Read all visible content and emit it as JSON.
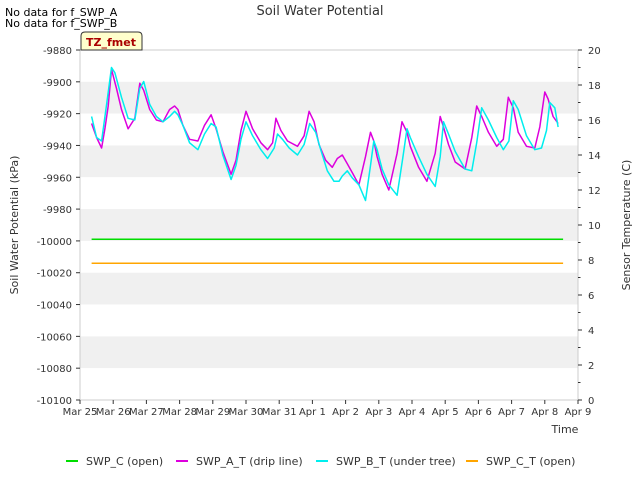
{
  "chart_data": {
    "type": "line",
    "title": "Soil Water Potential",
    "xlabel": "Time",
    "ylabel": "Soil Water Potential (kPa)",
    "y2label": "Sensor Temperature (C)",
    "ylim": [
      -10100,
      -9880
    ],
    "y2lim": [
      0,
      20
    ],
    "xlim": [
      0,
      15
    ],
    "yticks": [
      -9880,
      -9900,
      -9920,
      -9940,
      -9960,
      -9980,
      -10000,
      -10020,
      -10040,
      -10060,
      -10080,
      -10100
    ],
    "y2ticks": [
      0,
      2,
      4,
      6,
      8,
      10,
      12,
      14,
      16,
      18,
      20
    ],
    "xtick_labels": [
      "Mar 25",
      "Mar 26",
      "Mar 27",
      "Mar 28",
      "Mar 29",
      "Mar 30",
      "Mar 31",
      "Apr 1",
      "Apr 2",
      "Apr 3",
      "Apr 4",
      "Apr 5",
      "Apr 6",
      "Apr 7",
      "Apr 8",
      "Apr 9"
    ],
    "no_data_notes": [
      "No data for f_SWP_A",
      "No data for f_SWP_B"
    ],
    "box_label": "TZ_fmet",
    "series": [
      {
        "name": "SWP_C (open)",
        "color": "#00dd00",
        "axis": "left",
        "x": [
          0.35,
          14.55
        ],
        "values": [
          -9999,
          -9999
        ]
      },
      {
        "name": "SWP_A_T (drip line)",
        "color": "#dd00dd",
        "axis": "right",
        "x": [
          0.35,
          0.5,
          0.65,
          0.75,
          0.85,
          0.95,
          1.1,
          1.25,
          1.45,
          1.65,
          1.8,
          1.92,
          2.1,
          2.3,
          2.5,
          2.7,
          2.85,
          2.95,
          3.1,
          3.3,
          3.55,
          3.75,
          3.95,
          4.1,
          4.3,
          4.55,
          4.7,
          4.85,
          5.0,
          5.2,
          5.45,
          5.65,
          5.8,
          5.9,
          6.05,
          6.25,
          6.55,
          6.75,
          6.9,
          7.05,
          7.2,
          7.4,
          7.6,
          7.75,
          7.9,
          8.05,
          8.2,
          8.4,
          8.6,
          8.75,
          8.85,
          8.95,
          9.1,
          9.3,
          9.55,
          9.7,
          9.85,
          9.95,
          10.2,
          10.45,
          10.7,
          10.85,
          10.95,
          11.1,
          11.3,
          11.6,
          11.8,
          11.95,
          12.1,
          12.3,
          12.55,
          12.75,
          12.9,
          13.05,
          13.2,
          13.45,
          13.7,
          13.85,
          14.0,
          14.1,
          14.25,
          14.4
        ],
        "values": [
          15.8,
          15.0,
          14.4,
          15.5,
          16.8,
          18.9,
          17.8,
          16.6,
          15.5,
          16.1,
          18.1,
          17.7,
          16.6,
          16.0,
          15.9,
          16.6,
          16.8,
          16.6,
          15.7,
          14.9,
          14.8,
          15.7,
          16.3,
          15.5,
          14.2,
          12.9,
          13.7,
          15.4,
          16.5,
          15.5,
          14.7,
          14.3,
          14.7,
          16.1,
          15.4,
          14.8,
          14.5,
          15.1,
          16.5,
          15.9,
          14.6,
          13.7,
          13.3,
          13.8,
          14.0,
          13.5,
          13.0,
          12.3,
          13.9,
          15.3,
          14.8,
          13.9,
          12.9,
          12.0,
          14.1,
          15.9,
          15.3,
          14.5,
          13.3,
          12.5,
          14.1,
          16.2,
          15.6,
          14.6,
          13.6,
          13.2,
          15.0,
          16.8,
          16.2,
          15.3,
          14.5,
          14.9,
          17.3,
          16.7,
          15.3,
          14.5,
          14.4,
          15.6,
          17.6,
          17.2,
          16.2,
          15.8
        ]
      },
      {
        "name": "SWP_B_T (under tree)",
        "color": "#00eeee",
        "axis": "right",
        "x": [
          0.35,
          0.5,
          0.65,
          0.8,
          0.95,
          1.05,
          1.25,
          1.45,
          1.65,
          1.8,
          1.92,
          2.1,
          2.3,
          2.5,
          2.7,
          2.85,
          2.95,
          3.1,
          3.3,
          3.55,
          3.75,
          3.95,
          4.1,
          4.3,
          4.55,
          4.7,
          4.85,
          5.0,
          5.2,
          5.45,
          5.65,
          5.85,
          5.95,
          6.1,
          6.3,
          6.55,
          6.75,
          6.92,
          7.1,
          7.25,
          7.45,
          7.65,
          7.8,
          7.9,
          8.05,
          8.2,
          8.4,
          8.6,
          8.75,
          8.85,
          8.95,
          9.1,
          9.3,
          9.55,
          9.72,
          9.85,
          9.95,
          10.2,
          10.45,
          10.7,
          10.85,
          10.95,
          11.1,
          11.3,
          11.6,
          11.8,
          11.95,
          12.1,
          12.3,
          12.55,
          12.75,
          12.92,
          13.05,
          13.2,
          13.45,
          13.7,
          13.9,
          14.05,
          14.15,
          14.3,
          14.4
        ],
        "values": [
          16.2,
          15.0,
          14.8,
          16.9,
          19.0,
          18.7,
          17.3,
          16.1,
          16.0,
          17.8,
          18.2,
          16.9,
          16.2,
          15.9,
          16.2,
          16.5,
          16.3,
          15.7,
          14.7,
          14.3,
          15.2,
          15.8,
          15.6,
          14.0,
          12.6,
          13.4,
          14.9,
          15.9,
          15.1,
          14.3,
          13.8,
          14.4,
          15.2,
          14.9,
          14.4,
          14.0,
          14.6,
          15.8,
          15.3,
          14.3,
          13.1,
          12.5,
          12.5,
          12.8,
          13.1,
          12.7,
          12.3,
          11.4,
          13.4,
          14.8,
          14.3,
          13.2,
          12.3,
          11.7,
          13.8,
          15.5,
          15.0,
          13.9,
          12.9,
          12.2,
          13.9,
          15.9,
          15.2,
          14.2,
          13.2,
          13.1,
          14.7,
          16.7,
          16.0,
          15.0,
          14.3,
          14.8,
          17.1,
          16.6,
          15.1,
          14.3,
          14.4,
          15.4,
          17.0,
          16.7,
          15.6
        ]
      },
      {
        "name": "SWP_C_T (open)",
        "color": "#ffa500",
        "axis": "left",
        "x": [
          0.35,
          14.55
        ],
        "values": [
          -10014,
          -10014
        ]
      }
    ]
  }
}
